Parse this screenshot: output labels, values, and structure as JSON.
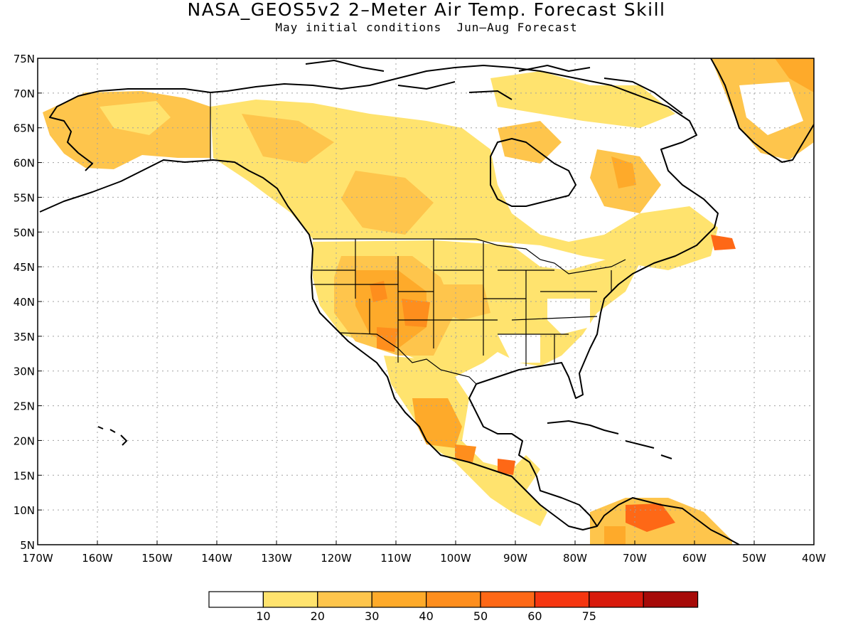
{
  "map": {
    "title": "NASA_GEOS5v2 2–Meter Air Temp. Forecast Skill",
    "subtitle": "May initial conditions  Jun–Aug Forecast",
    "lon_range": [
      -170,
      -40
    ],
    "lat_range": [
      5,
      75
    ],
    "lat_labels": [
      "75N",
      "70N",
      "65N",
      "60N",
      "55N",
      "50N",
      "45N",
      "40N",
      "35N",
      "30N",
      "25N",
      "20N",
      "15N",
      "10N",
      "5N"
    ],
    "lon_labels": [
      "170W",
      "160W",
      "150W",
      "140W",
      "130W",
      "120W",
      "110W",
      "100W",
      "90W",
      "80W",
      "70W",
      "60W",
      "50W",
      "40W"
    ],
    "grid": "dotted",
    "colorbar": {
      "colors": [
        "#ffffff",
        "#ffe36e",
        "#fec54c",
        "#feaa2a",
        "#fe8e1d",
        "#fe6816",
        "#f53610",
        "#d81a0c",
        "#a60a08"
      ],
      "labels": [
        "10",
        "20",
        "30",
        "40",
        "50",
        "60",
        "75"
      ]
    }
  }
}
